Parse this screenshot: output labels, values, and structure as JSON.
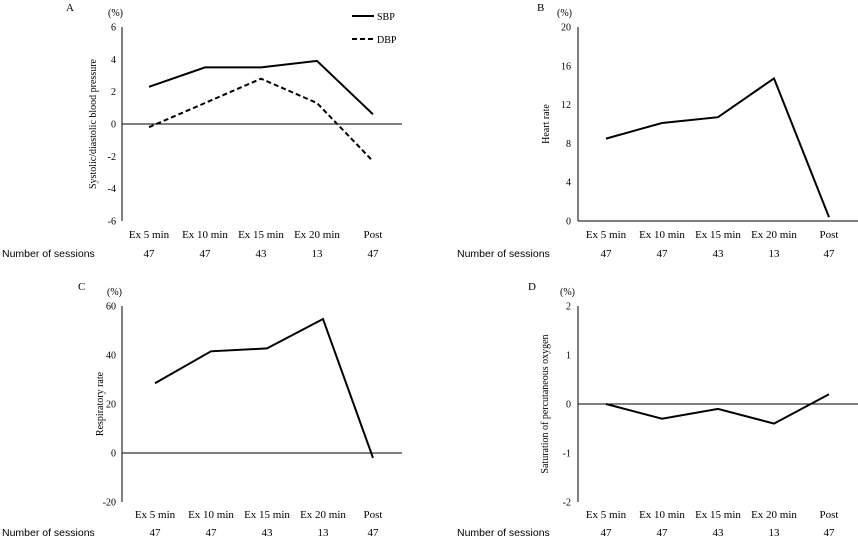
{
  "common": {
    "sessions_label": "Number of sessions",
    "sessions": [
      "47",
      "47",
      "43",
      "13",
      "47"
    ],
    "unit": "(%)"
  },
  "chart_data": [
    {
      "panel": "A",
      "type": "line",
      "categories": [
        "Ex 5 min",
        "Ex 10 min",
        "Ex 15 min",
        "Ex 20 min",
        "Post"
      ],
      "ylabel": "Systolic/diastolic blood pressure",
      "ylim": [
        -6,
        6
      ],
      "yticks": [
        -6,
        -4,
        -2,
        0,
        2,
        4,
        6
      ],
      "series": [
        {
          "name": "SBP",
          "values": [
            2.3,
            3.5,
            3.5,
            3.9,
            0.6
          ],
          "dash": false
        },
        {
          "name": "DBP",
          "values": [
            -0.2,
            1.3,
            2.8,
            1.3,
            -2.3
          ],
          "dash": true
        }
      ],
      "legend": "top-right"
    },
    {
      "panel": "B",
      "type": "line",
      "categories": [
        "Ex 5 min",
        "Ex 10 min",
        "Ex 15 min",
        "Ex 20 min",
        "Post"
      ],
      "ylabel": "Heart rate",
      "ylim": [
        0,
        20
      ],
      "yticks": [
        0,
        4,
        8,
        12,
        16,
        20
      ],
      "series": [
        {
          "name": "Heart rate",
          "values": [
            8.5,
            10.1,
            10.7,
            14.7,
            0.4
          ],
          "dash": false
        }
      ]
    },
    {
      "panel": "C",
      "type": "line",
      "categories": [
        "Ex 5 min",
        "Ex 10 min",
        "Ex 15 min",
        "Ex 20 min",
        "Post"
      ],
      "ylabel": "Respiratory rate",
      "ylim": [
        -20,
        60
      ],
      "yticks": [
        -20,
        0,
        20,
        40,
        60
      ],
      "series": [
        {
          "name": "Respiratory rate",
          "values": [
            28.5,
            41.5,
            42.7,
            54.7,
            -2.0
          ],
          "dash": false
        }
      ]
    },
    {
      "panel": "D",
      "type": "line",
      "categories": [
        "Ex 5 min",
        "Ex 10 min",
        "Ex 15 min",
        "Ex 20 min",
        "Post"
      ],
      "ylabel": "Saturation of percutaneous oxygen",
      "ylim": [
        -2,
        2
      ],
      "yticks": [
        -2,
        -1,
        0,
        1,
        2
      ],
      "series": [
        {
          "name": "SpO2",
          "values": [
            0.0,
            -0.3,
            -0.1,
            -0.4,
            0.2
          ],
          "dash": false
        }
      ]
    }
  ]
}
